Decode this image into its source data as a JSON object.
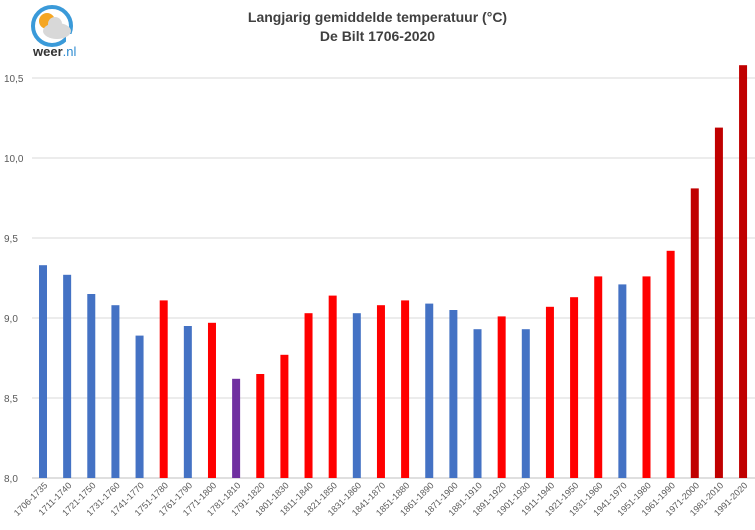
{
  "logo": {
    "brand": "weer",
    "tld": ".nl"
  },
  "chart_data": {
    "type": "bar",
    "title": "Langjarig gemiddelde temperatuur (°C)",
    "subtitle": "De Bilt 1706-2020",
    "xlabel": "",
    "ylabel": "",
    "ylim": [
      8.0,
      10.6
    ],
    "yticks": [
      "8,0",
      "8,5",
      "9,0",
      "9,5",
      "10,0",
      "10,5"
    ],
    "ytick_values": [
      8.0,
      8.5,
      9.0,
      9.5,
      10.0,
      10.5
    ],
    "grid": true,
    "categories": [
      "1706-1735",
      "1711-1740",
      "1721-1750",
      "1731-1760",
      "1741-1770",
      "1751-1780",
      "1761-1790",
      "1771-1800",
      "1781-1810",
      "1791-1820",
      "1801-1830",
      "1811-1840",
      "1821-1850",
      "1831-1860",
      "1841-1870",
      "1851-1880",
      "1861-1890",
      "1871-1900",
      "1881-1910",
      "1891-1920",
      "1901-1930",
      "1911-1940",
      "1921-1950",
      "1931-1960",
      "1941-1970",
      "1951-1980",
      "1961-1990",
      "1971-2000",
      "1981-2010",
      "1991-2020"
    ],
    "values": [
      9.33,
      9.27,
      9.15,
      9.08,
      8.89,
      9.11,
      8.95,
      8.97,
      8.62,
      8.65,
      8.77,
      9.03,
      9.14,
      9.03,
      9.08,
      9.11,
      9.09,
      9.05,
      8.93,
      9.01,
      8.93,
      9.07,
      9.13,
      9.26,
      9.21,
      9.26,
      9.42,
      9.81,
      10.19,
      10.58
    ],
    "colors": [
      "#4472C4",
      "#4472C4",
      "#4472C4",
      "#4472C4",
      "#4472C4",
      "#FF0000",
      "#4472C4",
      "#FF0000",
      "#7030A0",
      "#FF0000",
      "#FF0000",
      "#FF0000",
      "#FF0000",
      "#4472C4",
      "#FF0000",
      "#FF0000",
      "#4472C4",
      "#4472C4",
      "#4472C4",
      "#FF0000",
      "#4472C4",
      "#FF0000",
      "#FF0000",
      "#FF0000",
      "#4472C4",
      "#FF0000",
      "#FF0000",
      "#C00000",
      "#C00000",
      "#C00000"
    ]
  }
}
